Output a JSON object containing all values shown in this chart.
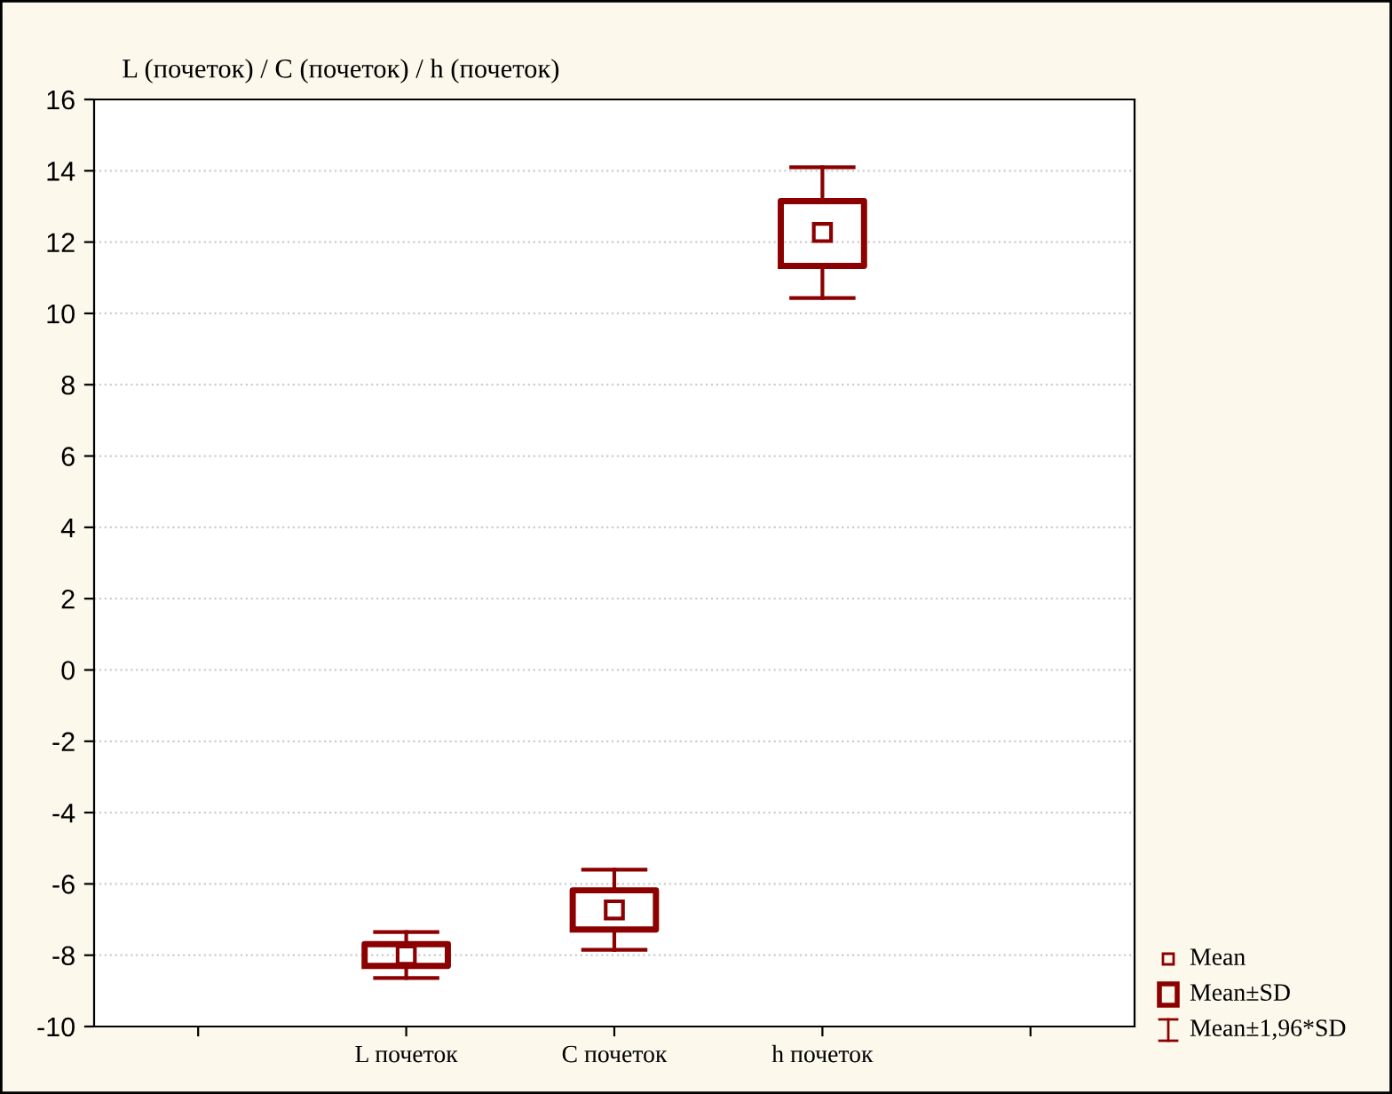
{
  "chart_data": {
    "type": "box",
    "title": "L (почеток) / C (почеток) / h (почеток)",
    "categories": [
      null,
      "L почеток",
      "C почеток",
      "h почеток",
      null
    ],
    "boxes": [
      null,
      {
        "low": -8.64,
        "q1": -8.3,
        "median": -8.0,
        "q3": -7.69,
        "high": -7.35
      },
      {
        "low": -7.85,
        "q1": -7.28,
        "median": -6.73,
        "q3": -6.18,
        "high": -5.6
      },
      {
        "low": 10.43,
        "q1": 11.33,
        "median": 12.27,
        "q3": 13.15,
        "high": 14.1
      },
      null
    ],
    "color": "#8b0000",
    "ylim": [
      -10,
      16
    ],
    "yticks": [
      -10,
      -8,
      -6,
      -4,
      -2,
      0,
      2,
      4,
      6,
      8,
      10,
      12,
      14,
      16
    ],
    "grid": "y",
    "annotations": [
      "Mean",
      "Mean±SD",
      "Mean±1,96*SD"
    ]
  }
}
